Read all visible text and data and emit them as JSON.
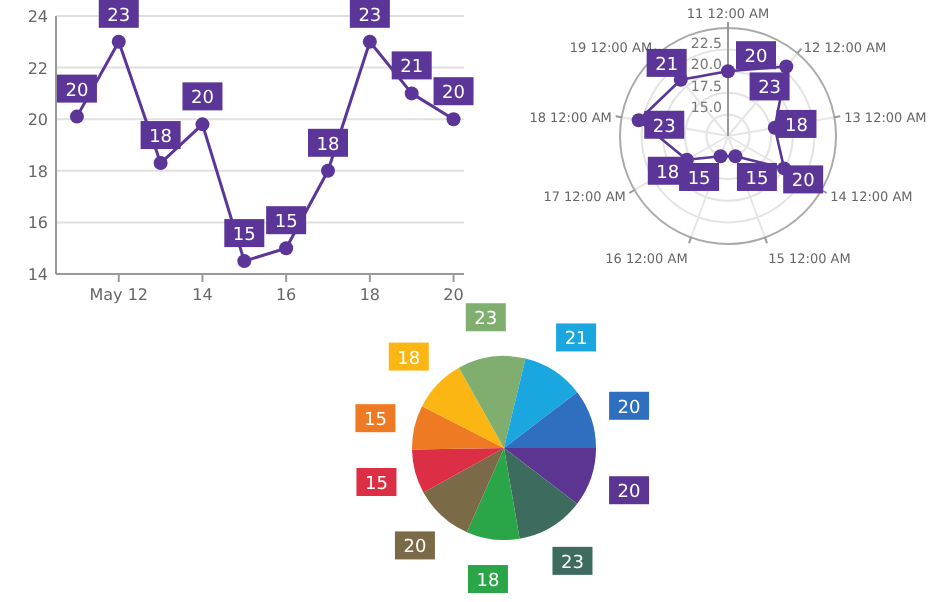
{
  "chart_data": [
    {
      "type": "line",
      "x": [
        "--05-11",
        "--05-12",
        "--05-13",
        "--05-14",
        "--05-15",
        "--05-16",
        "--05-17",
        "--05-18",
        "--05-19",
        "--05-20"
      ],
      "series": [
        {
          "color": "#5b3597",
          "values": [
            20.1,
            23,
            18.3,
            19.8,
            14.5,
            15,
            18,
            23,
            21,
            20
          ],
          "value_labels": [
            "20",
            "23",
            "18",
            "20",
            "15",
            "15",
            "18",
            "23",
            "21",
            "20"
          ]
        }
      ],
      "xlim": [
        "--05-10T12:00",
        "--05-20T06:00"
      ],
      "xticks": [
        {
          "value": "--05-12",
          "label": "May 12"
        },
        {
          "value": "--05-14",
          "label": "14"
        },
        {
          "value": "--05-16",
          "label": "16"
        },
        {
          "value": "--05-18",
          "label": "18"
        },
        {
          "value": "--05-20",
          "label": "20"
        }
      ],
      "ylim": [
        14,
        24
      ],
      "yticks": [
        14,
        16,
        18,
        20,
        22,
        24
      ],
      "grid": "y",
      "marker": "circle"
    },
    {
      "type": "radar",
      "categories": [
        "11 12:00 AM",
        "12 12:00 AM",
        "13 12:00 AM",
        "14 12:00 AM",
        "15 12:00 AM",
        "16 12:00 AM",
        "17 12:00 AM",
        "18 12:00 AM",
        "19 12:00 AM"
      ],
      "series": [
        {
          "color": "#5b3597",
          "values": [
            20,
            23,
            18,
            20,
            15,
            15,
            18,
            23,
            21
          ]
        }
      ],
      "data_labels": true,
      "ylim": [
        12.5,
        25
      ],
      "yticks": [
        {
          "value": 15,
          "label": "15.0"
        },
        {
          "value": 17.5,
          "label": "17.5"
        },
        {
          "value": 20,
          "label": "20.0"
        },
        {
          "value": 22.5,
          "label": "22.5"
        }
      ],
      "grid": true,
      "marker": "circle"
    },
    {
      "type": "pie",
      "categories": [
        null,
        null,
        null,
        null,
        null,
        null,
        null,
        null,
        null,
        null
      ],
      "values": [
        20,
        23,
        18,
        20,
        15,
        15,
        18,
        23,
        21,
        20
      ],
      "colors": [
        "#5c3592",
        "#3d6b5e",
        "#2aa548",
        "#7a6a48",
        "#dc2f45",
        "#ee7a24",
        "#fbb614",
        "#7fae6f",
        "#1aa7e0",
        "#2f6fbf"
      ],
      "data_labels": true
    }
  ]
}
